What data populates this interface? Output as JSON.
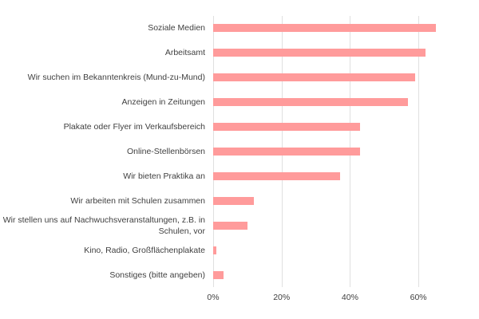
{
  "chart_data": {
    "type": "barh",
    "categories": [
      "Soziale Medien",
      "Arbeitsamt",
      "Wir suchen im Bekanntenkreis (Mund-zu-Mund)",
      "Anzeigen in Zeitungen",
      "Plakate oder Flyer im Verkaufsbereich",
      "Online-Stellenbörsen",
      "Wir bieten Praktika an",
      "Wir arbeiten mit Schulen zusammen",
      "Wir stellen uns auf Nachwuchsveranstaltungen, z.B. in Schulen, vor",
      "Kino, Radio, Großflächenplakate",
      "Sonstiges (bitte angeben)"
    ],
    "values": [
      65,
      62,
      59,
      57,
      43,
      43,
      37,
      12,
      10,
      1,
      3
    ],
    "color": "#ff9b9b",
    "xlim": [
      0,
      70
    ],
    "xticks": [
      {
        "value": 0,
        "label": "0%"
      },
      {
        "value": 20,
        "label": "20%"
      },
      {
        "value": 40,
        "label": "40%"
      },
      {
        "value": 60,
        "label": "60%"
      }
    ],
    "grid": true
  }
}
